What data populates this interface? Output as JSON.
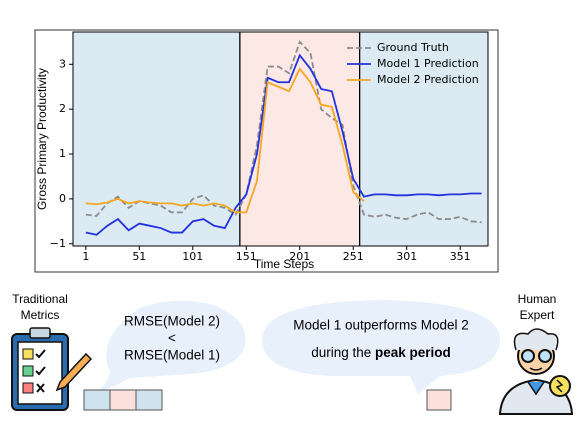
{
  "chart_data": {
    "type": "line",
    "x_label": "Time Steps",
    "y_label": "Gross Primary Productivity",
    "x": [
      1,
      11,
      21,
      31,
      41,
      51,
      61,
      71,
      81,
      91,
      101,
      111,
      121,
      131,
      141,
      151,
      161,
      171,
      181,
      191,
      201,
      211,
      221,
      231,
      241,
      251,
      261,
      271,
      281,
      291,
      301,
      311,
      321,
      331,
      341,
      351,
      361,
      371
    ],
    "series": [
      {
        "name": "Ground Truth",
        "color": "#8c8c8c",
        "linestyle": "dashed",
        "values": [
          -0.35,
          -0.38,
          -0.1,
          0.05,
          -0.2,
          -0.05,
          -0.1,
          -0.15,
          -0.3,
          -0.3,
          0.0,
          0.08,
          -0.15,
          -0.2,
          -0.35,
          0.1,
          1.2,
          2.95,
          2.95,
          2.8,
          3.5,
          3.25,
          2.0,
          1.8,
          1.65,
          0.3,
          -0.35,
          -0.4,
          -0.35,
          -0.42,
          -0.45,
          -0.35,
          -0.3,
          -0.45,
          -0.45,
          -0.4,
          -0.5,
          -0.52
        ]
      },
      {
        "name": "Model 1 Prediction",
        "color": "#2233dd",
        "linestyle": "solid",
        "values": [
          -0.75,
          -0.8,
          -0.6,
          -0.45,
          -0.7,
          -0.55,
          -0.6,
          -0.65,
          -0.75,
          -0.75,
          -0.5,
          -0.45,
          -0.6,
          -0.65,
          -0.2,
          0.1,
          1.0,
          2.7,
          2.6,
          2.6,
          3.2,
          2.9,
          2.45,
          2.4,
          1.5,
          0.45,
          0.05,
          0.1,
          0.1,
          0.08,
          0.08,
          0.1,
          0.1,
          0.08,
          0.1,
          0.1,
          0.12,
          0.12
        ]
      },
      {
        "name": "Model 2 Prediction",
        "color": "#f5a623",
        "linestyle": "solid",
        "values": [
          -0.1,
          -0.12,
          -0.08,
          0.0,
          -0.1,
          -0.05,
          -0.08,
          -0.1,
          -0.1,
          -0.15,
          -0.1,
          -0.15,
          -0.1,
          -0.15,
          -0.3,
          -0.3,
          0.4,
          2.6,
          2.5,
          2.4,
          2.9,
          2.6,
          2.1,
          2.05,
          1.2,
          0.15,
          -0.05,
          null,
          null,
          null,
          null,
          null,
          null,
          null,
          null,
          null,
          null,
          null
        ]
      }
    ],
    "xlim": [
      -11,
      377
    ],
    "ylim": [
      -1.05,
      3.72
    ],
    "xticks": [
      1,
      51,
      101,
      151,
      201,
      251,
      301,
      351
    ],
    "yticks": [
      {
        "value": -1,
        "label": "−1"
      },
      0,
      1,
      2,
      3
    ],
    "legend": "upper right",
    "regions": [
      {
        "start": -11,
        "end": 145,
        "color": "#cfe3ef"
      },
      {
        "start": 145,
        "end": 257,
        "color": "#fbe0dc"
      },
      {
        "start": 257,
        "end": 377,
        "color": "#cfe3ef"
      }
    ],
    "boundaries": [
      145,
      257
    ]
  },
  "diagram": {
    "traditional_label": [
      "Traditional",
      "Metrics"
    ],
    "metric_bubble": [
      "RMSE(Model 2)",
      "<",
      "RMSE(Model 1)"
    ],
    "expert_bubble": {
      "line1": "Model 1 outperforms Model 2",
      "line2": "during the ",
      "line2_bold": "peak period"
    },
    "expert_label": [
      "Human",
      "Expert"
    ]
  }
}
